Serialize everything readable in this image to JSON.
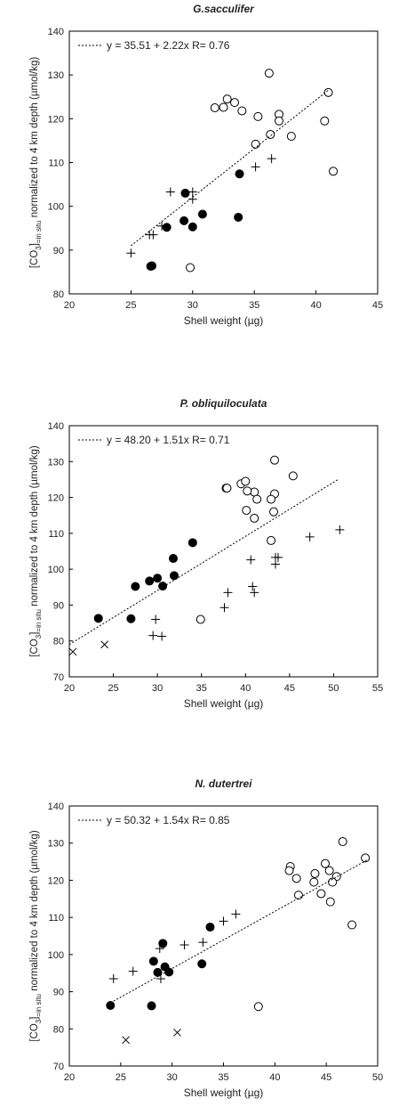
{
  "chart_data": [
    {
      "type": "scatter",
      "title": "G.sacculifer",
      "x_label": "Shell weight (µg)",
      "y_label": [
        "[CO",
        "3",
        "]",
        "=in situ",
        " normalized to 4 km depth (µmol/kg)"
      ],
      "annotation": "y = 35.51 + 2.22x  R= 0.76",
      "xlim": [
        20,
        45
      ],
      "xticks": [
        20,
        25,
        30,
        35,
        40,
        45
      ],
      "ylim": [
        80,
        140
      ],
      "yticks": [
        80,
        90,
        100,
        110,
        120,
        130,
        140
      ],
      "series": [
        {
          "marker": "open-circle",
          "color": "#000000",
          "x": [
            36.2,
            32.8,
            33.4,
            32.5,
            31.8,
            34,
            41,
            37,
            35.3,
            37,
            40.7,
            36.3,
            38,
            35.1,
            41.4,
            29.8
          ],
          "values": [
            130.4,
            124.5,
            123.7,
            122.6,
            122.5,
            121.8,
            126,
            121,
            120.5,
            119.5,
            119.5,
            116.4,
            116,
            114.2,
            108,
            86
          ]
        },
        {
          "marker": "filled-circle",
          "color": "#000000",
          "x": [
            29.4,
            33.8,
            30.8,
            29.3,
            27.9,
            30,
            33.7,
            26.6,
            26.7
          ],
          "values": [
            103,
            107.4,
            98.2,
            96.7,
            95.2,
            95.3,
            97.5,
            86.3,
            86.4
          ]
        },
        {
          "marker": "plus",
          "color": "#000000",
          "x": [
            25,
            26.5,
            26.8,
            27.5,
            28.2,
            30,
            30,
            35.1,
            36.4
          ],
          "values": [
            89.3,
            93.5,
            93.5,
            95.5,
            103.3,
            103.3,
            101.6,
            109,
            110.9
          ]
        },
        {
          "marker": "dotted-line",
          "color": "#000000",
          "x": [
            25,
            41
          ],
          "values": [
            91,
            126.5
          ]
        }
      ]
    },
    {
      "type": "scatter",
      "title": "P. obliquiloculata",
      "x_label": "Shell weight (µg)",
      "y_label": [
        "[CO",
        "3",
        "]",
        "=in situ",
        " normalized to 4 km depth (µmol/kg)"
      ],
      "annotation": "y = 48.20 + 1.51x  R= 0.71",
      "xlim": [
        20,
        55
      ],
      "xticks": [
        20,
        25,
        30,
        35,
        40,
        45,
        50,
        55
      ],
      "ylim": [
        70,
        140
      ],
      "yticks": [
        70,
        80,
        90,
        100,
        110,
        120,
        130,
        140
      ],
      "series": [
        {
          "marker": "open-circle",
          "color": "#000000",
          "x": [
            43.3,
            45.4,
            39.5,
            40,
            37.8,
            37.9,
            41,
            43.3,
            40.2,
            41.3,
            42.9,
            40.1,
            43.2,
            41,
            42.9,
            34.9
          ],
          "values": [
            130.4,
            126,
            123.8,
            124.5,
            122.6,
            122.6,
            121.5,
            121,
            121.8,
            119.5,
            119.5,
            116.4,
            116,
            114.2,
            108,
            86
          ]
        },
        {
          "marker": "filled-circle",
          "color": "#000000",
          "x": [
            23.3,
            27,
            27.5,
            29.1,
            30,
            30.6,
            31.8,
            31.9,
            34
          ],
          "values": [
            86.3,
            86.2,
            95.2,
            96.7,
            97.5,
            95.3,
            103,
            98.2,
            107.4
          ]
        },
        {
          "marker": "plus",
          "color": "#000000",
          "x": [
            29.5,
            30.5,
            29.8,
            37.6,
            38,
            40.8,
            41,
            40.6,
            43.4,
            43.7,
            43.4,
            47.3,
            50.7
          ],
          "values": [
            81.5,
            81.3,
            86,
            89.3,
            93.5,
            95.2,
            93.5,
            102.6,
            101.4,
            103.3,
            103.3,
            109,
            111
          ]
        },
        {
          "marker": "cross",
          "color": "#000000",
          "x": [
            20.4,
            24
          ],
          "values": [
            77,
            79
          ]
        },
        {
          "marker": "dotted-line",
          "color": "#000000",
          "x": [
            20,
            50.5
          ],
          "values": [
            79,
            125
          ]
        }
      ]
    },
    {
      "type": "scatter",
      "title": "N. dutertrei",
      "x_label": "Shell weight (µg)",
      "y_label": [
        "[CO",
        "3",
        "]",
        "=in situ",
        " normalized to 4 km depth (µmol/kg)"
      ],
      "annotation": "y = 50.32 + 1.54x  R= 0.85",
      "xlim": [
        20,
        50
      ],
      "xticks": [
        20,
        25,
        30,
        35,
        40,
        45,
        50
      ],
      "ylim": [
        70,
        140
      ],
      "yticks": [
        70,
        80,
        90,
        100,
        110,
        120,
        130,
        140
      ],
      "series": [
        {
          "marker": "open-circle",
          "color": "#000000",
          "x": [
            46.6,
            48.8,
            44.9,
            41.5,
            41.4,
            45.3,
            43.9,
            46,
            42.1,
            43.8,
            45.6,
            44.5,
            42.3,
            45.4,
            47.5,
            38.4
          ],
          "values": [
            130.4,
            126,
            124.5,
            123.7,
            122.6,
            122.6,
            121.8,
            121,
            120.5,
            119.5,
            119.5,
            116.4,
            116,
            114.2,
            108,
            86
          ]
        },
        {
          "marker": "filled-circle",
          "color": "#000000",
          "x": [
            24,
            28,
            28.2,
            28.6,
            29.1,
            29.3,
            29.7,
            32.9,
            33.7
          ],
          "values": [
            86.3,
            86.2,
            98.2,
            95.2,
            103,
            96.7,
            95.3,
            97.5,
            107.4
          ]
        },
        {
          "marker": "plus",
          "color": "#000000",
          "x": [
            24.3,
            26.2,
            28.8,
            28.9,
            31.2,
            33,
            35,
            36.2
          ],
          "values": [
            93.5,
            95.5,
            101.6,
            93.5,
            102.6,
            103.3,
            109,
            110.9
          ]
        },
        {
          "marker": "cross",
          "color": "#000000",
          "x": [
            25.5,
            30.5
          ],
          "values": [
            77,
            79
          ]
        },
        {
          "marker": "dotted-line",
          "color": "#000000",
          "x": [
            24,
            49
          ],
          "values": [
            87,
            125.5
          ]
        }
      ]
    }
  ]
}
